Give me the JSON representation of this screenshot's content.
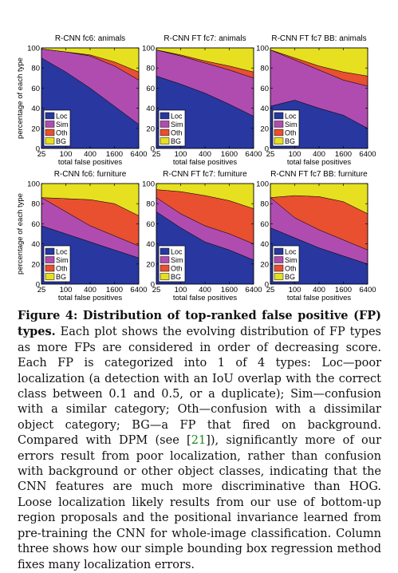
{
  "colors": {
    "Loc": "#2838a0",
    "Sim": "#b04cb0",
    "Oth": "#e85030",
    "BG": "#e6e020"
  },
  "chart_data": [
    {
      "type": "area",
      "title": "R-CNN fc6: animals",
      "x": [
        "25",
        "100",
        "400",
        "1600",
        "6400"
      ],
      "ylabel": "percentage of each type",
      "xlabel": "total false positives",
      "ylim": [
        0,
        100
      ],
      "series": [
        {
          "name": "Loc",
          "values": [
            90,
            76,
            60,
            42,
            24
          ]
        },
        {
          "name": "Sim",
          "values": [
            9,
            20,
            32,
            40,
            44
          ]
        },
        {
          "name": "Oth",
          "values": [
            0,
            0,
            1,
            4,
            8
          ]
        },
        {
          "name": "BG",
          "values": [
            1,
            4,
            7,
            14,
            24
          ]
        }
      ]
    },
    {
      "type": "area",
      "title": "R-CNN FT fc7: animals",
      "x": [
        "25",
        "100",
        "400",
        "1600",
        "6400"
      ],
      "ylabel": "percentage of each type",
      "xlabel": "total false positives",
      "ylim": [
        0,
        100
      ],
      "series": [
        {
          "name": "Loc",
          "values": [
            72,
            64,
            55,
            44,
            32
          ]
        },
        {
          "name": "Sim",
          "values": [
            26,
            28,
            30,
            34,
            38
          ]
        },
        {
          "name": "Oth",
          "values": [
            0,
            1,
            2,
            4,
            6
          ]
        },
        {
          "name": "BG",
          "values": [
            2,
            7,
            13,
            18,
            24
          ]
        }
      ]
    },
    {
      "type": "area",
      "title": "R-CNN FT fc7 BB: animals",
      "x": [
        "25",
        "100",
        "400",
        "1600",
        "6400"
      ],
      "ylabel": "percentage of each type",
      "xlabel": "total false positives",
      "ylim": [
        0,
        100
      ],
      "series": [
        {
          "name": "Loc",
          "values": [
            42,
            48,
            40,
            33,
            20
          ]
        },
        {
          "name": "Sim",
          "values": [
            56,
            40,
            38,
            35,
            42
          ]
        },
        {
          "name": "Oth",
          "values": [
            0,
            2,
            4,
            8,
            10
          ]
        },
        {
          "name": "BG",
          "values": [
            2,
            10,
            18,
            24,
            28
          ]
        }
      ]
    },
    {
      "type": "area",
      "title": "R-CNN fc6: furniture",
      "x": [
        "25",
        "100",
        "400",
        "1600",
        "6400"
      ],
      "ylabel": "percentage of each type",
      "xlabel": "total false positives",
      "ylim": [
        0,
        100
      ],
      "series": [
        {
          "name": "Loc",
          "values": [
            58,
            50,
            42,
            34,
            26
          ]
        },
        {
          "name": "Sim",
          "values": [
            28,
            22,
            16,
            14,
            12
          ]
        },
        {
          "name": "Oth",
          "values": [
            0,
            13,
            26,
            32,
            30
          ]
        },
        {
          "name": "BG",
          "values": [
            14,
            15,
            16,
            20,
            32
          ]
        }
      ]
    },
    {
      "type": "area",
      "title": "R-CNN FT fc7: furniture",
      "x": [
        "25",
        "100",
        "400",
        "1600",
        "6400"
      ],
      "ylabel": "percentage of each type",
      "xlabel": "total false positives",
      "ylim": [
        0,
        100
      ],
      "series": [
        {
          "name": "Loc",
          "values": [
            72,
            56,
            42,
            34,
            24
          ]
        },
        {
          "name": "Sim",
          "values": [
            14,
            14,
            16,
            16,
            16
          ]
        },
        {
          "name": "Oth",
          "values": [
            8,
            22,
            30,
            33,
            35
          ]
        },
        {
          "name": "BG",
          "values": [
            6,
            8,
            12,
            17,
            25
          ]
        }
      ]
    },
    {
      "type": "area",
      "title": "R-CNN FT fc7 BB: furniture",
      "x": [
        "25",
        "100",
        "400",
        "1600",
        "6400"
      ],
      "ylabel": "percentage of each type",
      "xlabel": "total false positives",
      "ylim": [
        0,
        100
      ],
      "series": [
        {
          "name": "Loc",
          "values": [
            56,
            46,
            36,
            28,
            20
          ]
        },
        {
          "name": "Sim",
          "values": [
            30,
            20,
            18,
            16,
            14
          ]
        },
        {
          "name": "Oth",
          "values": [
            0,
            22,
            33,
            38,
            36
          ]
        },
        {
          "name": "BG",
          "values": [
            14,
            12,
            13,
            18,
            30
          ]
        }
      ]
    }
  ],
  "yticks": [
    "0",
    "20",
    "40",
    "60",
    "80",
    "100"
  ],
  "legend": [
    "Loc",
    "Sim",
    "Oth",
    "BG"
  ],
  "caption": {
    "label": "Figure 4: Distribution of top-ranked false positive (FP) types.",
    "text_before_ref": "Each plot shows the evolving distribution of FP types as more FPs are considered in order of decreasing score. Each FP is categorized into 1 of 4 types: Loc—poor localization (a detection with an IoU overlap with the correct class between 0.1 and 0.5, or a duplicate); Sim—confusion with a similar category; Oth—confusion with a dissimilar object category; BG—a FP that fired on background. Compared with DPM (see [",
    "ref": "21",
    "text_after_ref": "]), significantly more of our errors result from poor localization, rather than confusion with background or other object classes, indicating that the CNN features are much more discriminative than HOG. Loose localization likely results from our use of bottom-up region proposals and the positional invariance learned from pre-training the CNN for whole-image classification. Column three shows how our simple bounding box regression method fixes many localization errors."
  }
}
